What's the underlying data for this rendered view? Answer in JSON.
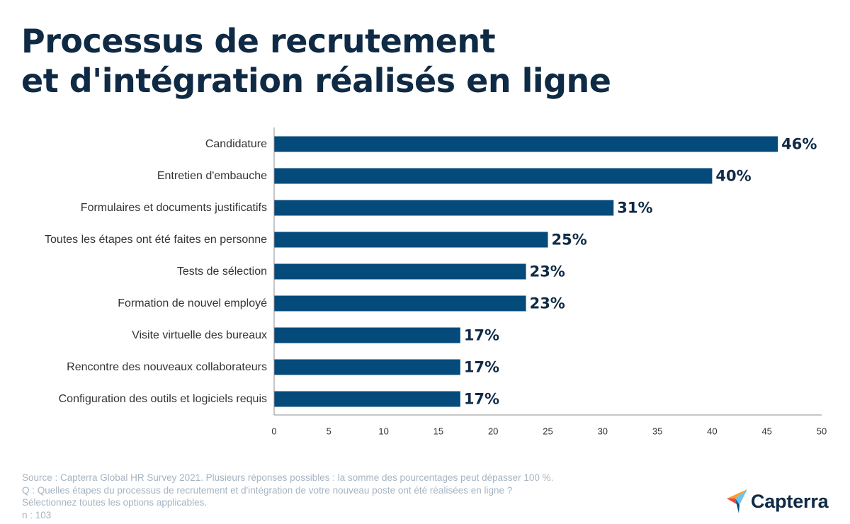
{
  "title": {
    "line1": "Processus de recrutement",
    "line2": "et d'intégration réalisés en ligne"
  },
  "chart_data": {
    "type": "bar",
    "orientation": "horizontal",
    "categories": [
      "Candidature",
      "Entretien d'embauche",
      "Formulaires et documents justificatifs",
      "Toutes les étapes ont été faites en personne",
      "Tests de sélection",
      "Formation de nouvel employé",
      "Visite virtuelle des bureaux",
      "Rencontre des nouveaux collaborateurs",
      "Configuration des outils et logiciels requis"
    ],
    "values": [
      46,
      40,
      31,
      25,
      23,
      23,
      17,
      17,
      17
    ],
    "data_labels": [
      "46%",
      "40%",
      "31%",
      "25%",
      "23%",
      "23%",
      "17%",
      "17%",
      "17%"
    ],
    "xlim": [
      0,
      50
    ],
    "x_ticks": [
      0,
      5,
      10,
      15,
      20,
      25,
      30,
      35,
      40,
      45,
      50
    ],
    "grid": false,
    "bar_color": "#044a7a",
    "label_color": "#0f2a44"
  },
  "footer": {
    "source": "Source : Capterra Global HR Survey 2021. Plusieurs réponses possibles : la somme des pourcentages peut dépasser 100 %.",
    "question": "Q : Quelles étapes du processus de recrutement et d'intégration de votre nouveau poste ont été réalisées en ligne ?",
    "instruction": "Sélectionnez toutes les options applicables.",
    "n": "n : 103"
  },
  "logo": {
    "text": "Capterra",
    "icon": "capterra-arrow-icon",
    "colors": [
      "#ff9d28",
      "#68c5ed",
      "#044d80",
      "#e54747"
    ]
  }
}
